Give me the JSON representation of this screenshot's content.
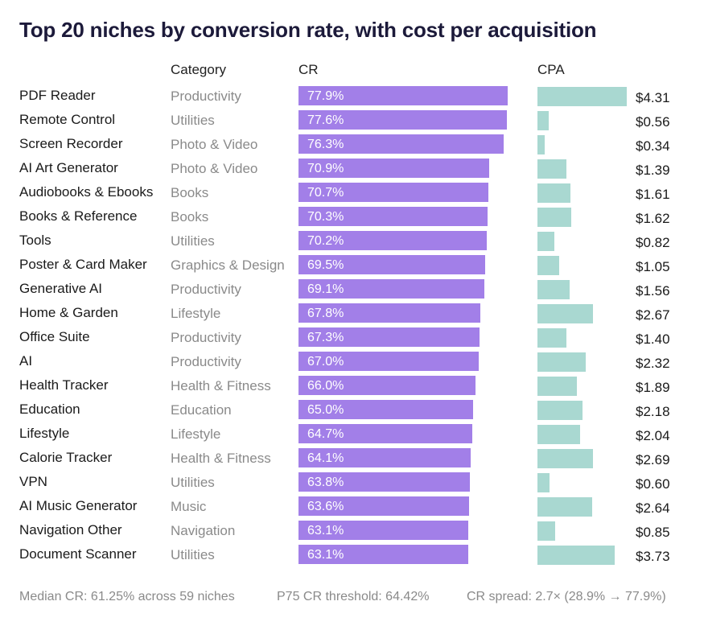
{
  "title": "Top 20 niches by conversion rate, with cost per acquisition",
  "headers": {
    "category": "Category",
    "cr": "CR",
    "cpa": "CPA"
  },
  "chart_data": {
    "type": "bar",
    "title": "Top 20 niches by conversion rate, with cost per acquisition",
    "categories": [
      "PDF Reader",
      "Remote Control",
      "Screen Recorder",
      "AI Art Generator",
      "Audiobooks & Ebooks",
      "Books & Reference",
      "Tools",
      "Poster & Card Maker",
      "Generative AI",
      "Home & Garden",
      "Office Suite",
      "AI",
      "Health Tracker",
      "Education",
      "Lifestyle",
      "Calorie Tracker",
      "VPN",
      "AI Music Generator",
      "Navigation Other",
      "Document Scanner"
    ],
    "groups": [
      "Productivity",
      "Utilities",
      "Photo & Video",
      "Photo & Video",
      "Books",
      "Books",
      "Utilities",
      "Graphics & Design",
      "Productivity",
      "Lifestyle",
      "Productivity",
      "Productivity",
      "Health & Fitness",
      "Education",
      "Lifestyle",
      "Health & Fitness",
      "Utilities",
      "Music",
      "Navigation",
      "Utilities"
    ],
    "series": [
      {
        "name": "CR",
        "values": [
          77.9,
          77.6,
          76.3,
          70.9,
          70.7,
          70.3,
          70.2,
          69.5,
          69.1,
          67.8,
          67.3,
          67.0,
          66.0,
          65.0,
          64.7,
          64.1,
          63.8,
          63.6,
          63.1,
          63.1
        ],
        "labels": [
          "77.9%",
          "77.6%",
          "76.3%",
          "70.9%",
          "70.7%",
          "70.3%",
          "70.2%",
          "69.5%",
          "69.1%",
          "67.8%",
          "67.3%",
          "67.0%",
          "66.0%",
          "65.0%",
          "64.7%",
          "64.1%",
          "63.8%",
          "63.6%",
          "63.1%",
          "63.1%"
        ],
        "color": "#a27fe8"
      },
      {
        "name": "CPA",
        "values": [
          4.31,
          0.56,
          0.34,
          1.39,
          1.61,
          1.62,
          0.82,
          1.05,
          1.56,
          2.67,
          1.4,
          2.32,
          1.89,
          2.18,
          2.04,
          2.69,
          0.6,
          2.64,
          0.85,
          3.73
        ],
        "labels": [
          "$4.31",
          "$0.56",
          "$0.34",
          "$1.39",
          "$1.61",
          "$1.62",
          "$0.82",
          "$1.05",
          "$1.56",
          "$2.67",
          "$1.40",
          "$2.32",
          "$1.89",
          "$2.18",
          "$2.04",
          "$2.69",
          "$0.60",
          "$2.64",
          "$0.85",
          "$3.73"
        ],
        "color": "#a9d8d1"
      }
    ],
    "legend": "none",
    "grid": false
  },
  "footer": {
    "median": "Median CR: 61.25% across 59 niches",
    "p75": "P75 CR threshold: 64.42%",
    "spread": "CR spread: 2.7× (28.9% → 77.9%)"
  }
}
